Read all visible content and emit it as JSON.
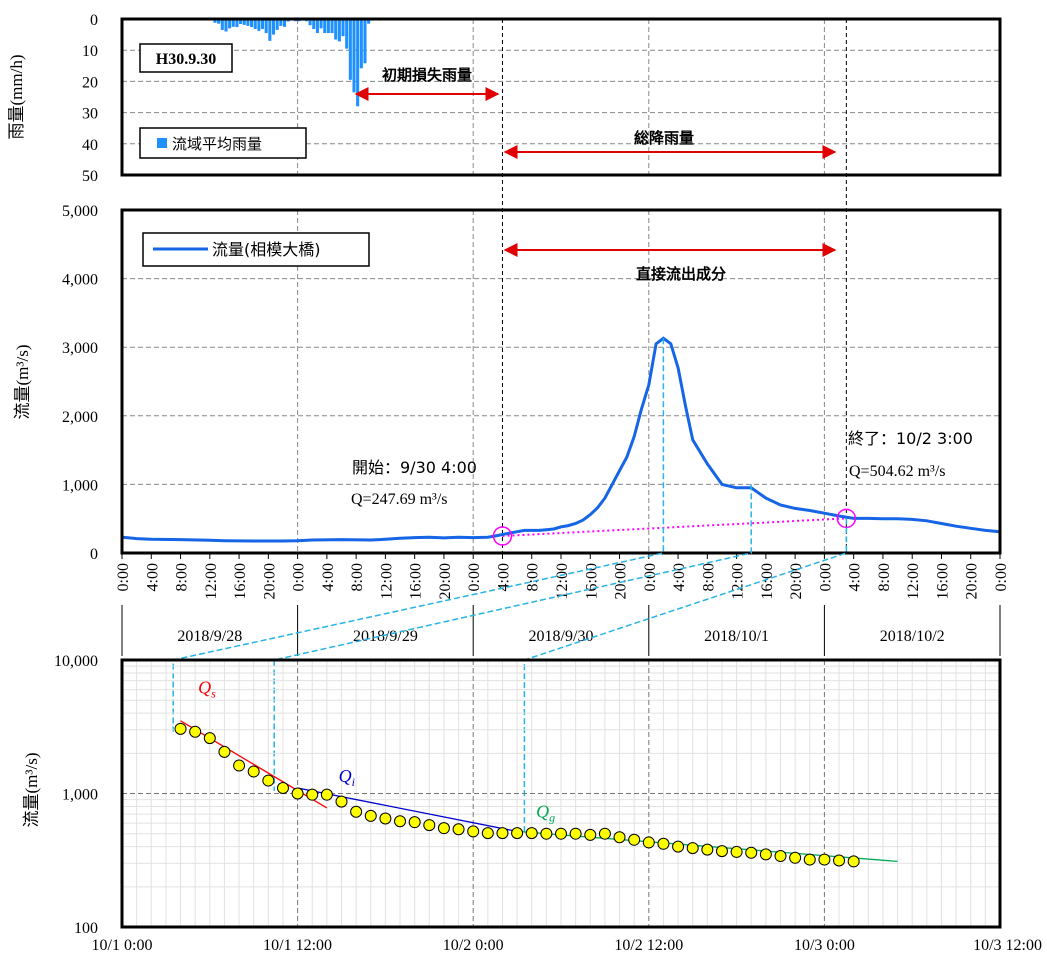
{
  "chart_data": [
    {
      "type": "bar",
      "ylabel": "雨量(mm/h)",
      "ylim": [
        0,
        50
      ],
      "y_inverted": true,
      "yticks": [
        "0",
        "10",
        "20",
        "30",
        "40",
        "50"
      ],
      "grid": true,
      "date_label": "H30.9.30",
      "legend": "流域平均雨量",
      "legend_position": "bottom-left",
      "color": "#1e90ff",
      "x": [
        12.5,
        13,
        13.5,
        14,
        14.5,
        15,
        15.5,
        16,
        16.5,
        17,
        17.5,
        18,
        18.5,
        19,
        19.5,
        20,
        20.5,
        21,
        21.5,
        22,
        22.5,
        23,
        23.5,
        24,
        24.5,
        25,
        25.5,
        26,
        26.5,
        27,
        27.5,
        28,
        28.5,
        29,
        29.5,
        30,
        30.5,
        31,
        31.5,
        32,
        32.5,
        33,
        33.5,
        34,
        34.5,
        35
      ],
      "values": [
        1.2,
        1.5,
        3.5,
        4,
        3,
        2.5,
        2.6,
        1.6,
        1.9,
        2.2,
        2.6,
        3.2,
        3.8,
        3.2,
        4.5,
        7,
        5,
        3.5,
        2.2,
        2.5,
        0.8,
        0.3,
        0.7,
        0.7,
        0.5,
        0.7,
        2,
        3.2,
        4.5,
        3,
        4.5,
        4.5,
        4.5,
        6.6,
        7.2,
        5.5,
        9.5,
        19.5,
        23.5,
        28,
        15.8,
        14.2,
        1.5,
        0.5,
        0.3,
        0.5
      ],
      "annotations": [
        {
          "text": "初期損失雨量",
          "x_start": 8.5,
          "x_end": 28
        },
        {
          "text": "総降雨量",
          "x_start": 28,
          "x_end": 75
        }
      ]
    },
    {
      "type": "line",
      "ylabel": "流量(m³/s)",
      "ylim": [
        0,
        5000
      ],
      "yticks": [
        "0",
        "1,000",
        "2,000",
        "3,000",
        "4,000",
        "5,000"
      ],
      "grid": true,
      "legend": "流量(相模大橋)",
      "legend_position": "top-left",
      "color": "#1565e6",
      "x_unit": "hours from 2018/9/28 0:00",
      "xticks": [
        "0:00",
        "4:00",
        "8:00",
        "12:00",
        "16:00",
        "20:00",
        "0:00",
        "4:00",
        "8:00",
        "12:00",
        "16:00",
        "20:00",
        "0:00",
        "4:00",
        "8:00",
        "12:00",
        "16:00",
        "20:00",
        "0:00",
        "4:00",
        "8:00",
        "12:00",
        "16:00",
        "20:00",
        "0:00",
        "4:00",
        "8:00",
        "12:00",
        "16:00",
        "20:00",
        "0:00"
      ],
      "date_labels": [
        "2018/9/28",
        "2018/9/29",
        "2018/9/30",
        "2018/10/1",
        "2018/10/2"
      ],
      "x": [
        0,
        2,
        4,
        8,
        12,
        14,
        18,
        22,
        24,
        26,
        30,
        34,
        36,
        38,
        40,
        42,
        44,
        46,
        48,
        50,
        51,
        52,
        53,
        54,
        55,
        56,
        57,
        58,
        59,
        60,
        61,
        62,
        63,
        64,
        65,
        66,
        67,
        68,
        69,
        70,
        71,
        72,
        73,
        74,
        75,
        76,
        77,
        78,
        80,
        82,
        84,
        86,
        88,
        90,
        92,
        94,
        96,
        98,
        100,
        102,
        104,
        106,
        108,
        110,
        112,
        114,
        116,
        118,
        120
      ],
      "y": [
        230,
        210,
        200,
        195,
        185,
        180,
        175,
        175,
        180,
        190,
        195,
        190,
        200,
        215,
        225,
        230,
        220,
        230,
        225,
        230,
        248,
        270,
        290,
        310,
        330,
        330,
        330,
        340,
        350,
        380,
        400,
        430,
        480,
        560,
        660,
        800,
        1000,
        1200,
        1400,
        1700,
        2100,
        2450,
        3050,
        3130,
        3050,
        2700,
        2150,
        1650,
        1300,
        1000,
        950,
        950,
        800,
        700,
        650,
        620,
        580,
        540,
        505,
        505,
        500,
        500,
        490,
        470,
        430,
        390,
        360,
        330,
        310
      ],
      "baseline": {
        "x_start": 52,
        "y_start": 247.69,
        "x_end": 99,
        "y_end": 504.62,
        "color": "#ff00ff"
      },
      "annotations": [
        {
          "text": "直接流出成分",
          "x_start": 52,
          "x_end": 99
        },
        {
          "text": "開始：9/30 4:00",
          "sub": "Q=247.69 m³/s"
        },
        {
          "text": "終了：10/2 3:00",
          "sub": "Q=504.62 m³/s"
        }
      ]
    },
    {
      "type": "scatter",
      "ylabel": "流量(m³/s)",
      "y_scale": "log",
      "ylim": [
        100,
        10000
      ],
      "yticks": [
        "100",
        "1,000",
        "10,000"
      ],
      "xticks": [
        "10/1 0:00",
        "10/1 12:00",
        "10/2 0:00",
        "10/2 12:00",
        "10/3 0:00",
        "10/3 12:00"
      ],
      "x_unit": "hours from 10/1 0:00",
      "grid": true,
      "marker_color": "#ffff00",
      "x": [
        4,
        5,
        6,
        7,
        8,
        9,
        10,
        11,
        12,
        13,
        14,
        15,
        16,
        17,
        18,
        19,
        20,
        21,
        22,
        23,
        24,
        25,
        26,
        27,
        28,
        29,
        30,
        31,
        32,
        33,
        34,
        35,
        36,
        37,
        38,
        39,
        40,
        41,
        42,
        43,
        44,
        45,
        46,
        47,
        48,
        49,
        50
      ],
      "y": [
        3050,
        2900,
        2600,
        2050,
        1620,
        1460,
        1250,
        1100,
        1000,
        980,
        980,
        870,
        730,
        680,
        650,
        620,
        610,
        580,
        550,
        540,
        520,
        505,
        505,
        505,
        505,
        500,
        500,
        500,
        490,
        500,
        470,
        450,
        430,
        420,
        400,
        390,
        380,
        370,
        365,
        360,
        350,
        340,
        330,
        320,
        320,
        315,
        310
      ],
      "series": [
        {
          "name": "Qs",
          "sub": "s",
          "color": "#ff0000",
          "x": [
            4,
            14
          ],
          "y": [
            3500,
            780
          ]
        },
        {
          "name": "Qi",
          "sub": "i",
          "color": "#0000cc",
          "x": [
            12,
            27
          ],
          "y": [
            1100,
            520
          ]
        },
        {
          "name": "Qg",
          "sub": "g",
          "color": "#00aa55",
          "x": [
            27,
            53
          ],
          "y": [
            520,
            310
          ]
        }
      ]
    }
  ]
}
